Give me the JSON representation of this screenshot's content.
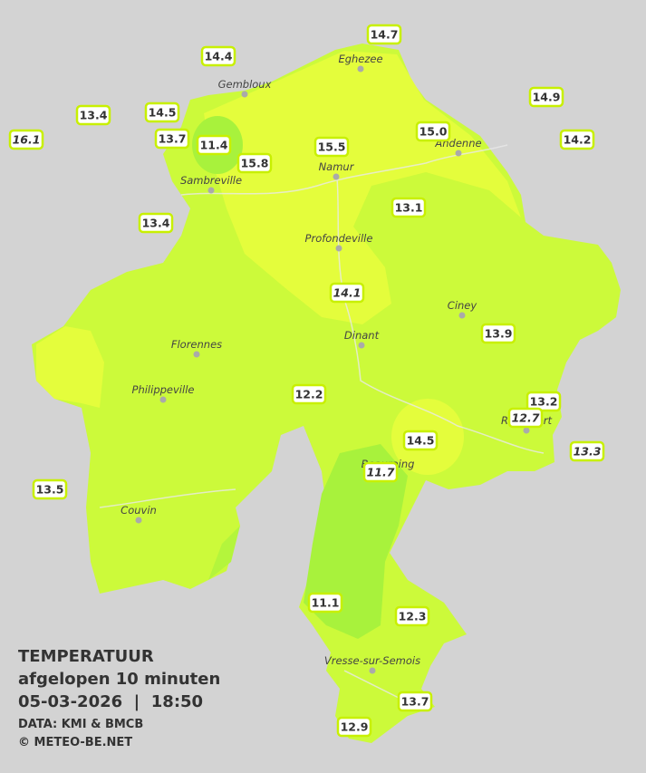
{
  "stations": [
    {
      "label": "14.7",
      "italic": false
    },
    {
      "label": "14.4",
      "italic": false
    },
    {
      "label": "14.9",
      "italic": false
    },
    {
      "label": "13.4",
      "italic": false
    },
    {
      "label": "14.5",
      "italic": false
    },
    {
      "label": "15.0",
      "italic": false
    },
    {
      "label": "16.1",
      "italic": true
    },
    {
      "label": "13.7",
      "italic": false
    },
    {
      "label": "11.4",
      "italic": false
    },
    {
      "label": "15.5",
      "italic": false
    },
    {
      "label": "14.2",
      "italic": false
    },
    {
      "label": "15.8",
      "italic": false
    },
    {
      "label": "13.1",
      "italic": false
    },
    {
      "label": "13.4",
      "italic": false
    },
    {
      "label": "14.1",
      "italic": true
    },
    {
      "label": "13.9",
      "italic": false
    },
    {
      "label": "12.2",
      "italic": false
    },
    {
      "label": "13.2",
      "italic": false
    },
    {
      "label": "12.7",
      "italic": true
    },
    {
      "label": "14.5",
      "italic": false
    },
    {
      "label": "13.3",
      "italic": true
    },
    {
      "label": "11.7",
      "italic": true
    },
    {
      "label": "13.5",
      "italic": false
    },
    {
      "label": "11.1",
      "italic": false
    },
    {
      "label": "12.3",
      "italic": false
    },
    {
      "label": "13.7",
      "italic": false
    },
    {
      "label": "12.9",
      "italic": false
    }
  ],
  "cities": [
    "Eghezee",
    "Gembloux",
    "Andenne",
    "Namur",
    "Sambreville",
    "Profondeville",
    "Ciney",
    "Dinant",
    "Florennes",
    "Philippeville",
    "Beauraing",
    "Rochefort",
    "Couvin",
    "Vresse-sur-Semois"
  ],
  "legend": {
    "title": "TEMPERATUUR",
    "subtitle": "afgelopen 10 minuten",
    "datetime": "05-03-2026  |  18:50",
    "source": "DATA: KMI & BMCB",
    "copyright": "© METEO-BE.NET"
  }
}
